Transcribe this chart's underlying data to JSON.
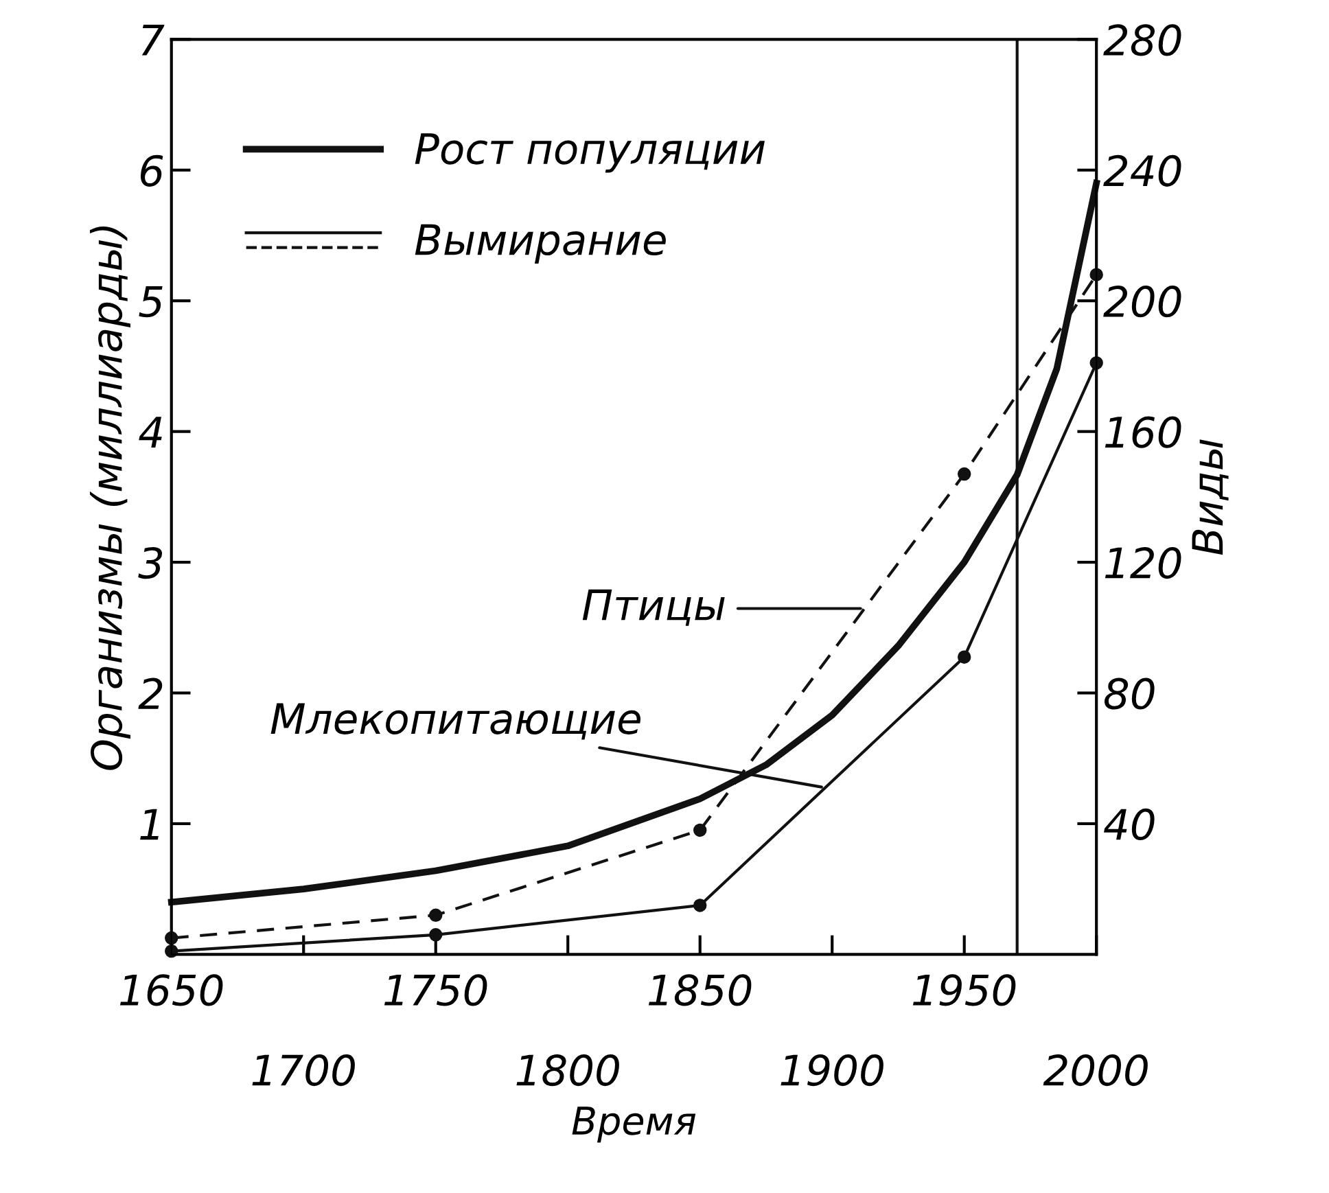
{
  "chart_data": {
    "type": "line",
    "xlabel": "Время",
    "ylabel": "Организмы (миллиарды)",
    "y2label": "Виды",
    "xlim": [
      1650,
      2000
    ],
    "xticks": [
      1650,
      {
        "value": 1700,
        "label": null
      },
      1750,
      {
        "value": 1800,
        "label": null
      },
      1850,
      {
        "value": 1900,
        "label": null
      },
      1950,
      {
        "value": 2000,
        "label": null
      }
    ],
    "x2lim": [
      1650,
      2000
    ],
    "x2ticks": [
      1700,
      1800,
      1900,
      2000
    ],
    "ylim": [
      0,
      7
    ],
    "yticks": [
      1,
      2,
      3,
      4,
      5,
      6,
      7
    ],
    "y2lim": [
      0,
      280
    ],
    "y2ticks": [
      40,
      80,
      120,
      160,
      200,
      240,
      280
    ],
    "series": [
      {
        "name": "Рост популяции",
        "color": "#111111",
        "marker": "none",
        "line_style": "solid",
        "x": [
          1650,
          1700,
          1750,
          1800,
          1850,
          1875,
          1900,
          1925,
          1950,
          1970,
          1985,
          2000
        ],
        "values": [
          0.4,
          0.5,
          0.64,
          0.83,
          1.19,
          1.45,
          1.83,
          2.36,
          3.0,
          3.67,
          4.48,
          5.9
        ]
      },
      {
        "color": "#111111",
        "axis": "y2",
        "marker": "circle",
        "line_style": "dashed",
        "x": [
          1650,
          1750,
          1850,
          1950,
          2000
        ],
        "values": [
          5,
          12,
          38,
          147,
          208
        ]
      },
      {
        "color": "#111111",
        "axis": "y2",
        "marker": "circle",
        "line_style": "solid",
        "x": [
          1650,
          1750,
          1850,
          1950,
          2000
        ],
        "values": [
          1,
          6,
          15,
          91,
          181
        ]
      }
    ],
    "ref_lines": [
      {
        "axis": "x",
        "value": 1970,
        "color": "#111111"
      }
    ],
    "annotations": [
      "Вымирание",
      "Птицы",
      {
        "text": "Млекопитающие",
        "x": 1896,
        "y": 1.28
      }
    ],
    "legend": "top left",
    "grid": false
  }
}
